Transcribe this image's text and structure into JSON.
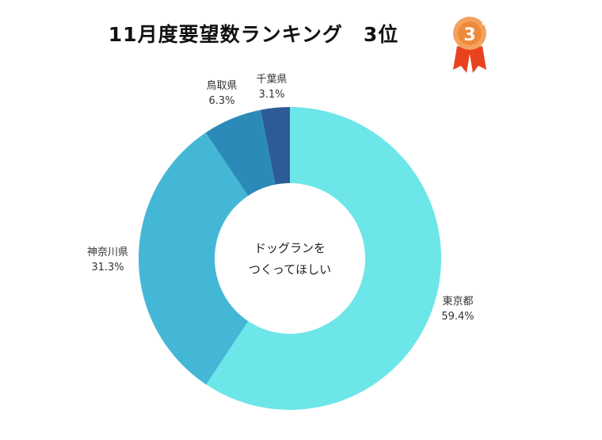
{
  "title": "11月度要望数ランキング　3位",
  "badge": {
    "rank": "3",
    "medal_color": "#ee8a3a",
    "ribbon_color": "#e8421f"
  },
  "chart_data": {
    "type": "pie",
    "donut": true,
    "center_label": [
      "ドッグランを",
      "つくってほしい"
    ],
    "slices": [
      {
        "label": "東京都",
        "value": 59.4,
        "value_label": "59.4%",
        "color": "#6ce6e8"
      },
      {
        "label": "神奈川県",
        "value": 31.3,
        "value_label": "31.3%",
        "color": "#44b7d6"
      },
      {
        "label": "鳥取県",
        "value": 6.3,
        "value_label": "6.3%",
        "color": "#2b8ab8"
      },
      {
        "label": "千葉県",
        "value": 3.1,
        "value_label": "3.1%",
        "color": "#2d5b97"
      }
    ]
  }
}
